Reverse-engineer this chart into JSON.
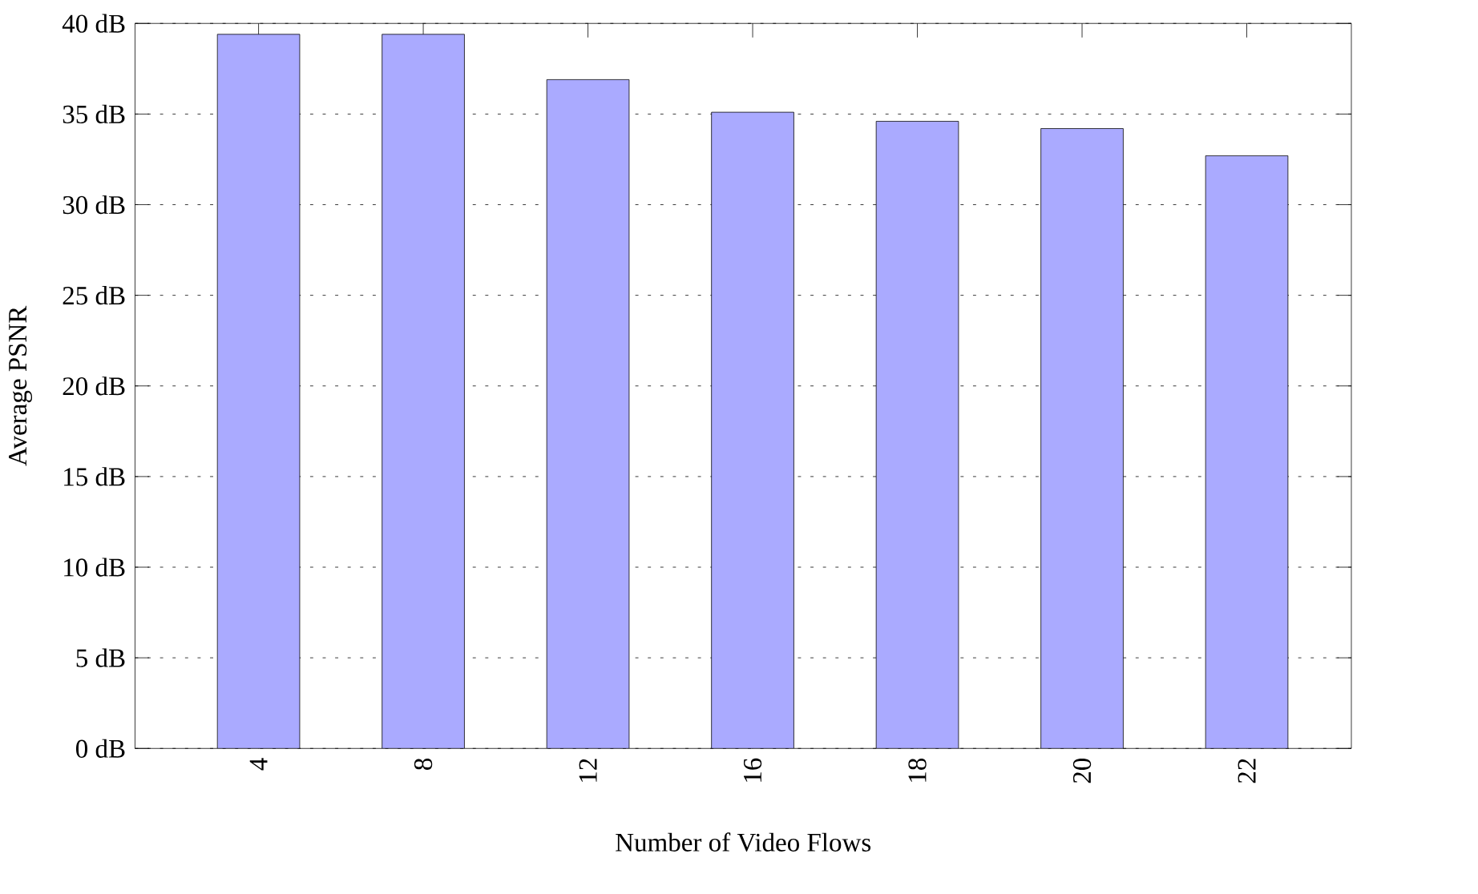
{
  "chart_data": {
    "type": "bar",
    "xlabel": "Number of Video Flows",
    "ylabel": "Average PSNR",
    "categories": [
      "4",
      "8",
      "12",
      "16",
      "18",
      "20",
      "22"
    ],
    "values": [
      39.4,
      39.4,
      36.9,
      35.1,
      34.6,
      34.2,
      32.7
    ],
    "color": "#aaaaff",
    "ylim": [
      0,
      40
    ],
    "yticks": [
      {
        "value": 0,
        "label": "0 dB"
      },
      {
        "value": 5,
        "label": "5 dB"
      },
      {
        "value": 10,
        "label": "10 dB"
      },
      {
        "value": 15,
        "label": "15 dB"
      },
      {
        "value": 20,
        "label": "20 dB"
      },
      {
        "value": 25,
        "label": "25 dB"
      },
      {
        "value": 30,
        "label": "30 dB"
      },
      {
        "value": 35,
        "label": "35 dB"
      },
      {
        "value": 40,
        "label": "40 dB"
      }
    ],
    "grid": "y"
  }
}
